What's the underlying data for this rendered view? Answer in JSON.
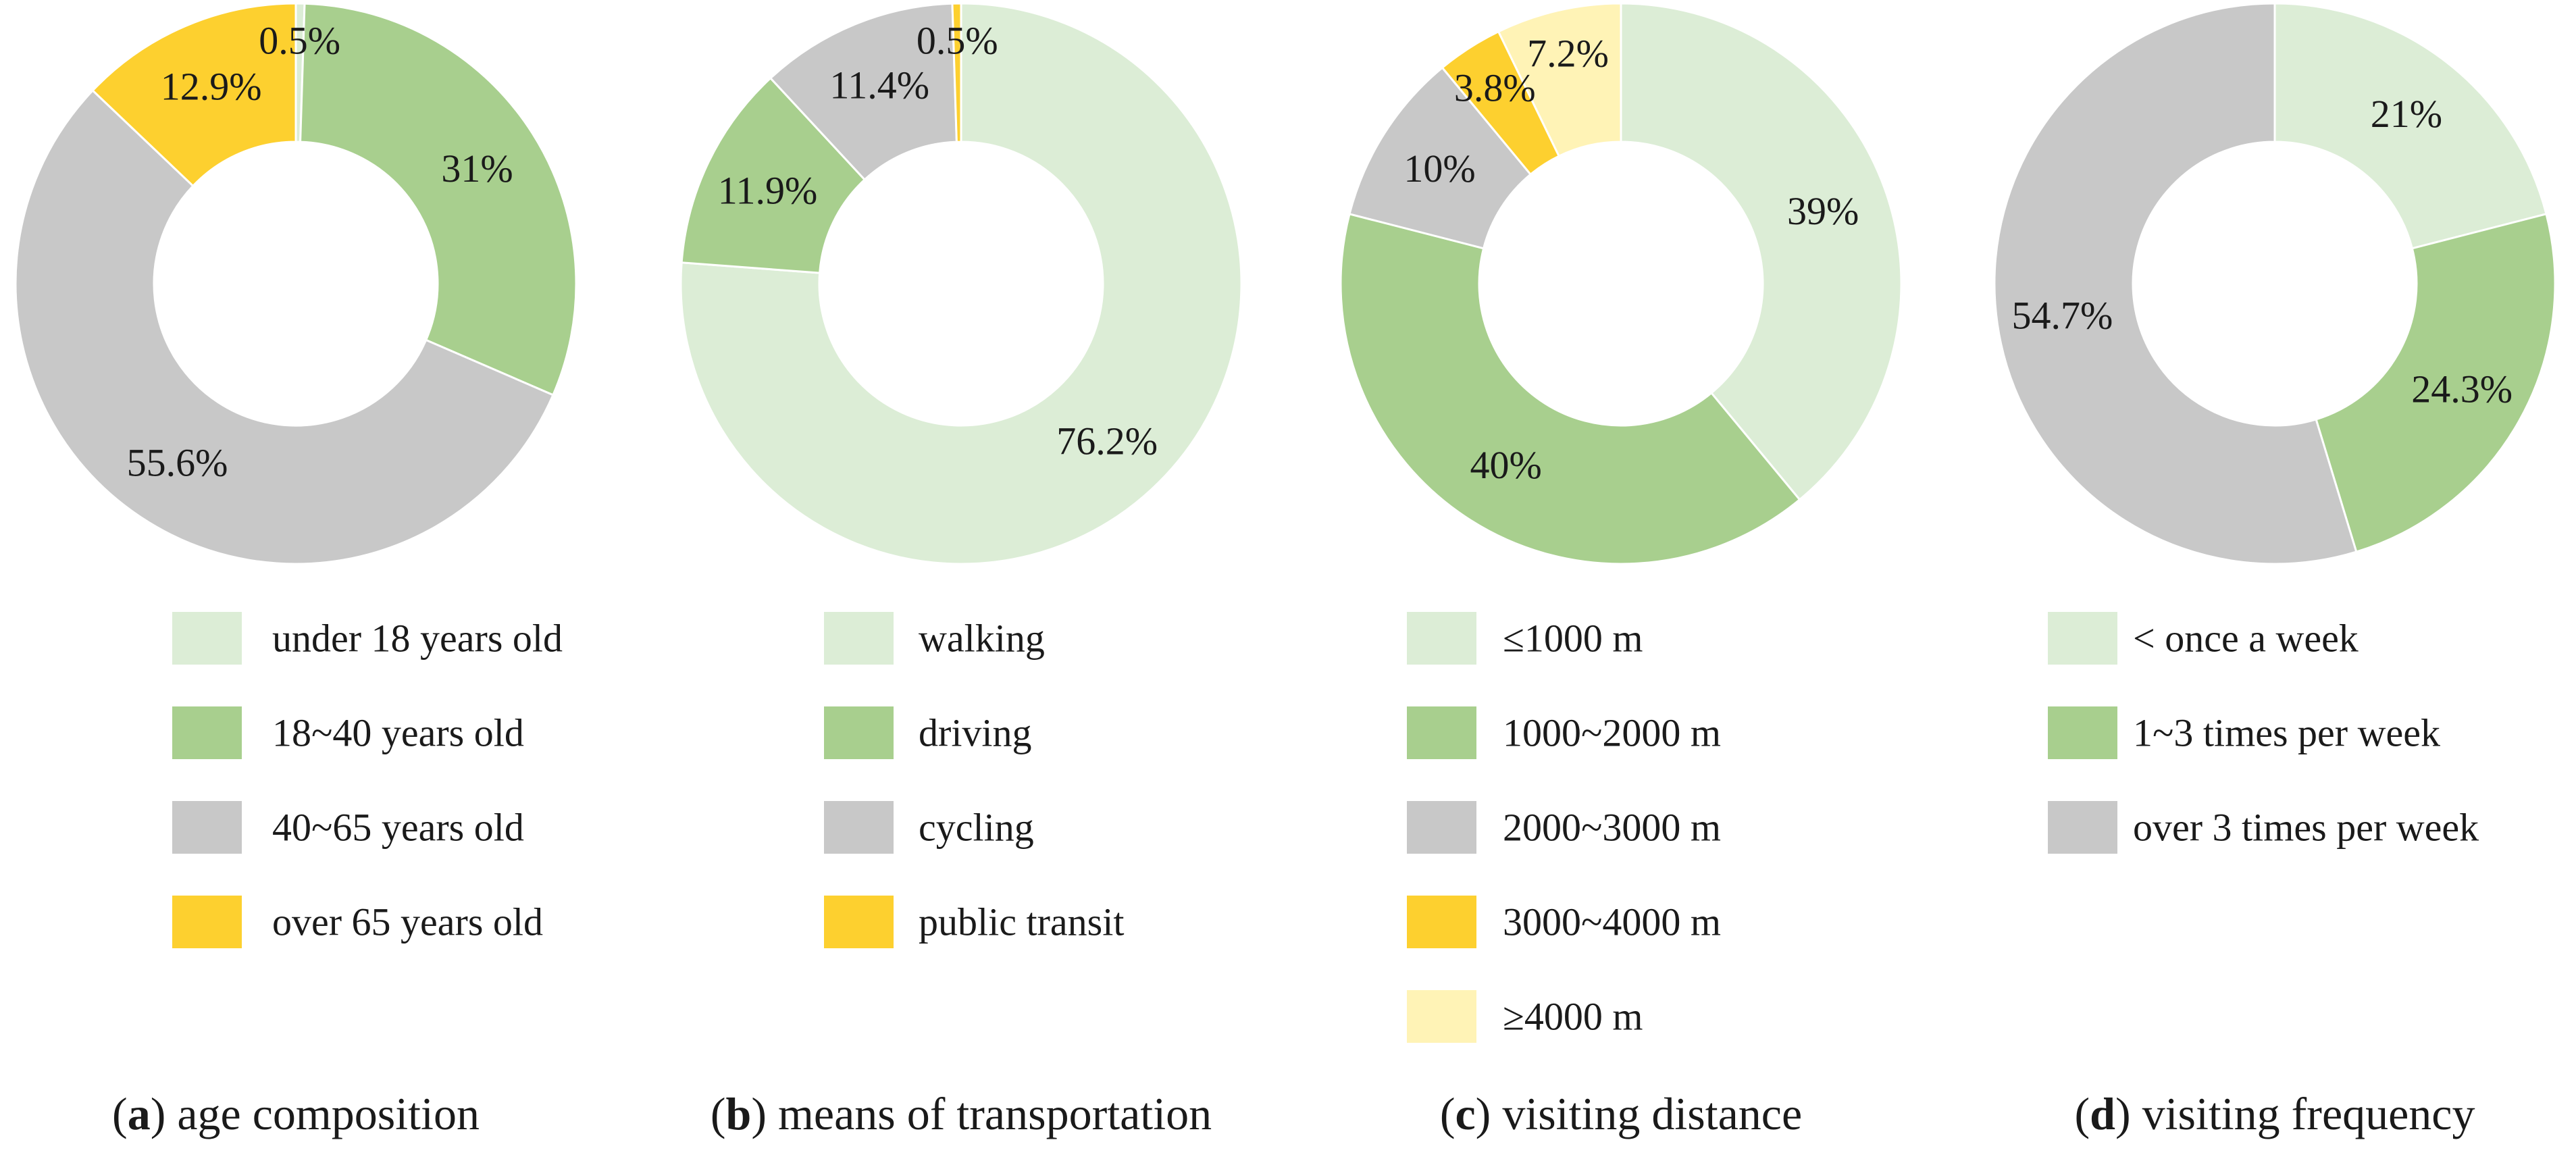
{
  "palette": {
    "light_green": "#dcedd6",
    "green": "#a8cf8e",
    "gray": "#c8c8c8",
    "yellow": "#fdd02f",
    "pale_yellow": "#fff3b6"
  },
  "chart_data": [
    {
      "type": "pie",
      "variant": "donut",
      "letter": "a",
      "caption": "age composition",
      "categories": [
        "under 18 years old",
        "18~40 years old",
        "40~65 years old",
        "over 65 years old"
      ],
      "values": [
        0.5,
        31,
        55.6,
        12.9
      ],
      "labels": [
        "0.5%",
        "31%",
        "55.6%",
        "12.9%"
      ],
      "colors": [
        "#dcedd6",
        "#a8cf8e",
        "#c8c8c8",
        "#fdd02f"
      ],
      "legend_position": "bottom"
    },
    {
      "type": "pie",
      "variant": "donut",
      "letter": "b",
      "caption": "means of transportation",
      "categories": [
        "walking",
        "driving",
        "cycling",
        "public transit"
      ],
      "values": [
        76.2,
        11.9,
        11.4,
        0.5
      ],
      "labels": [
        "76.2%",
        "11.9%",
        "11.4%",
        "0.5%"
      ],
      "colors": [
        "#dcedd6",
        "#a8cf8e",
        "#c8c8c8",
        "#fdd02f"
      ],
      "legend_position": "bottom"
    },
    {
      "type": "pie",
      "variant": "donut",
      "letter": "c",
      "caption": "visiting distance",
      "categories": [
        "≤1000 m",
        "1000~2000 m",
        "2000~3000 m",
        "3000~4000 m",
        "≥4000 m"
      ],
      "values": [
        39,
        40,
        10,
        3.8,
        7.2
      ],
      "labels": [
        "39%",
        "40%",
        "10%",
        "3.8%",
        "7.2%"
      ],
      "colors": [
        "#dcedd6",
        "#a8cf8e",
        "#c8c8c8",
        "#fdd02f",
        "#fff3b6"
      ],
      "legend_position": "bottom"
    },
    {
      "type": "pie",
      "variant": "donut",
      "letter": "d",
      "caption": "visiting frequency",
      "categories": [
        "< once a week",
        "1~3 times per week",
        "over 3 times per week"
      ],
      "values": [
        21,
        24.3,
        54.7
      ],
      "labels": [
        "21%",
        "24.3%",
        "54.7%"
      ],
      "colors": [
        "#dcedd6",
        "#a8cf8e",
        "#c8c8c8"
      ],
      "legend_position": "bottom"
    }
  ]
}
